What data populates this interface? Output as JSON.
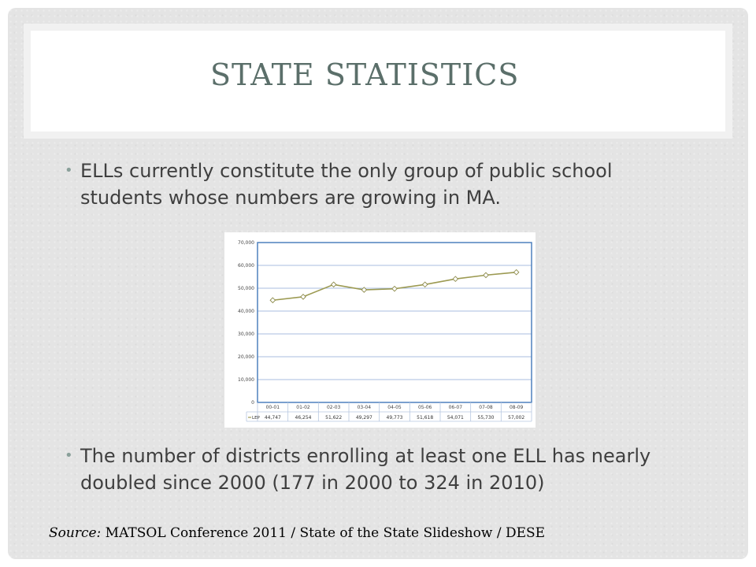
{
  "slide": {
    "title": "STATE STATISTICS",
    "bullets": [
      "ELLs currently constitute the only group of public school students whose numbers are growing in MA.",
      "The number of districts enrolling at least one ELL has nearly doubled since 2000 (177 in 2000 to 324 in 2010)"
    ],
    "bullet_glyph": "•",
    "source_label": "Source:",
    "source_text": "MATSOL Conference 2011 / State of the State Slideshow / DESE"
  },
  "colors": {
    "title": "#5b6f6a",
    "bullet": "#8aa09a",
    "series_line": "#9c9a52",
    "plot_border": "#4f81bd",
    "grid": "#a9bedf"
  },
  "chart_data": {
    "type": "line",
    "categories": [
      "00-01",
      "01-02",
      "02-03",
      "03-04",
      "04-05",
      "05-06",
      "06-07",
      "07-08",
      "08-09"
    ],
    "series": [
      {
        "name": "LEP",
        "values": [
          44747,
          46254,
          51622,
          49297,
          49773,
          51618,
          54071,
          55730,
          57002
        ]
      }
    ],
    "table_values": [
      "44,747",
      "46,254",
      "51,622",
      "49,297",
      "49,773",
      "51,618",
      "54,071",
      "55,730",
      "57,002"
    ],
    "y_ticks": [
      "0",
      "10,000",
      "20,000",
      "30,000",
      "40,000",
      "50,000",
      "60,000",
      "70,000"
    ],
    "ylim": [
      0,
      70000
    ],
    "grid": true,
    "legend": "data-table"
  }
}
